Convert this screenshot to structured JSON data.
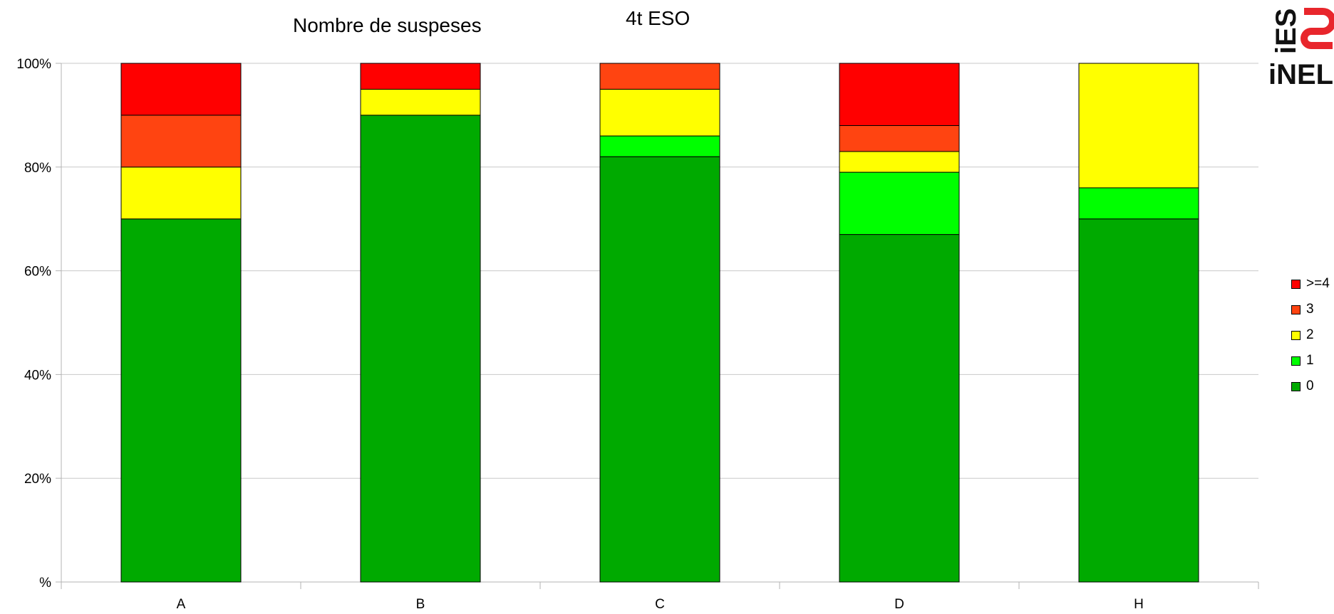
{
  "chart_data": {
    "type": "bar",
    "stacked": true,
    "title": "4t ESO",
    "subtitle": "Nombre de suspeses",
    "xlabel": "",
    "ylabel": "",
    "categories": [
      "A",
      "B",
      "C",
      "D",
      "H"
    ],
    "ylim": [
      0,
      100
    ],
    "y_ticks": [
      0,
      20,
      40,
      60,
      80,
      100
    ],
    "y_tick_labels": [
      "%",
      "20%",
      "40%",
      "60%",
      "80%",
      "100%"
    ],
    "grid": true,
    "legend_position": "right",
    "series": [
      {
        "name": "0",
        "color": "#00aa00",
        "values": [
          70,
          90,
          82,
          67,
          70
        ]
      },
      {
        "name": "1",
        "color": "#00ff00",
        "values": [
          0,
          0,
          4,
          12,
          6
        ]
      },
      {
        "name": "2",
        "color": "#ffff00",
        "values": [
          10,
          5,
          9,
          4,
          24
        ]
      },
      {
        "name": "3",
        "color": "#ff4411",
        "values": [
          10,
          0,
          5,
          5,
          0
        ]
      },
      {
        "name": ">=4",
        "color": "#ff0000",
        "values": [
          10,
          5,
          0,
          12,
          0
        ]
      }
    ]
  },
  "logo": {
    "text_top": "iES",
    "text_bottom": "iNEL",
    "color_dark": "#111111",
    "color_accent": "#e8262c"
  }
}
